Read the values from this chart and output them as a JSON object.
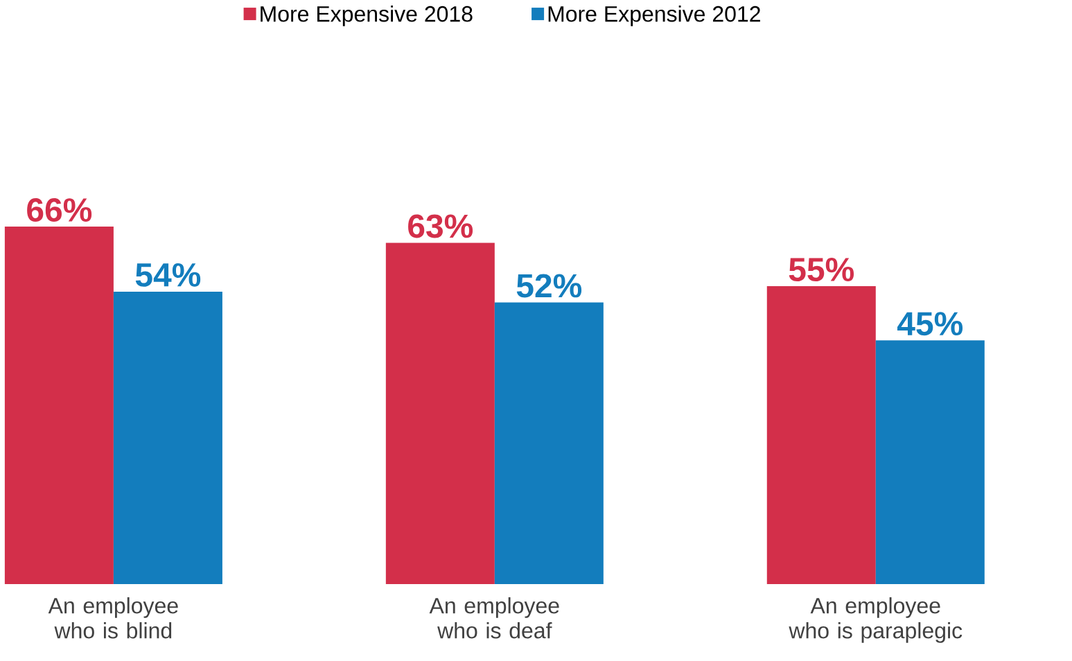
{
  "chart_data": {
    "type": "bar",
    "categories": [
      "An employee who is blind",
      "An employee who is deaf",
      "An employee who is paraplegic"
    ],
    "series": [
      {
        "name": "More Expensive 2018",
        "color": "#d32f4a",
        "values": [
          66,
          63,
          55
        ],
        "value_labels": [
          "66%",
          "63%",
          "55%"
        ]
      },
      {
        "name": "More Expensive 2012",
        "color": "#137dbd",
        "values": [
          54,
          52,
          45
        ],
        "value_labels": [
          "54%",
          "52%",
          "45%"
        ]
      }
    ],
    "legend": "top",
    "grid": false
  }
}
